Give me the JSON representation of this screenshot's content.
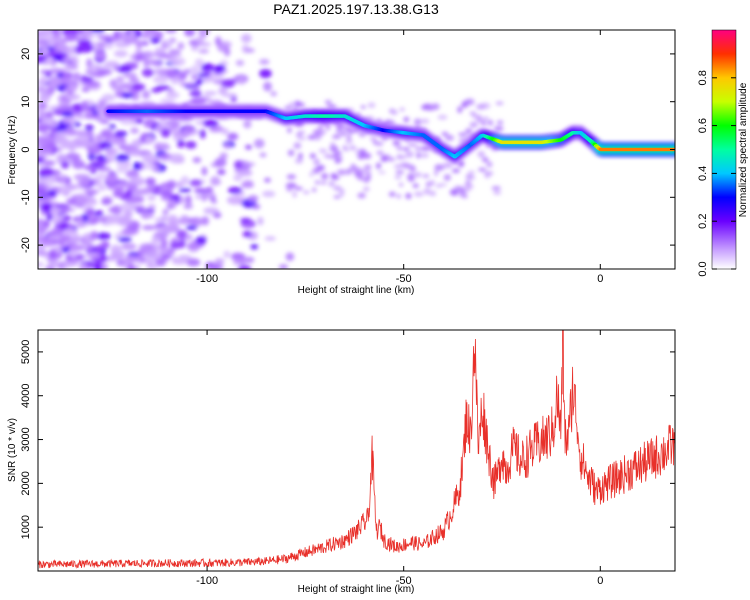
{
  "title": "PAZ1.2025.197.13.38.G13",
  "colors": {
    "snr_line": "#e8302a",
    "axis": "#000000",
    "spec_low": "#d9b8ff",
    "spec_mid": "#8c00ff"
  },
  "chart_data": [
    {
      "type": "heatmap",
      "xlabel": "Height of straight line (km)",
      "ylabel": "Frequency (Hz)",
      "xlim": [
        -143,
        19
      ],
      "ylim": [
        -25,
        25
      ],
      "xticks": [
        -100,
        -50,
        0
      ],
      "yticks": [
        -20,
        -10,
        0,
        10,
        20
      ],
      "colorbar": {
        "label": "Normalized spectral amplitude",
        "range": [
          0,
          1
        ],
        "ticks": [
          "0.0",
          "0.2",
          "0.4",
          "0.6",
          "0.8"
        ],
        "colormap": "rainbow (white→violet→blue→cyan→green→yellow→red→magenta)"
      },
      "ridge": {
        "x": [
          -125,
          -115,
          -105,
          -95,
          -85,
          -80,
          -75,
          -70,
          -65,
          -60,
          -55,
          -50,
          -45,
          -40,
          -37,
          -33,
          -30,
          -25,
          -20,
          -15,
          -10,
          -7,
          -5,
          -2,
          0,
          5,
          10,
          19
        ],
        "y": [
          8,
          8,
          8,
          8,
          8,
          6.5,
          7,
          7,
          7,
          5,
          4,
          3.5,
          3,
          0,
          -1.5,
          1,
          3,
          1.5,
          1.5,
          1.5,
          2,
          3.5,
          3.5,
          1.5,
          0,
          0,
          0,
          0
        ],
        "amplitude": [
          0.3,
          0.35,
          0.3,
          0.3,
          0.3,
          0.4,
          0.45,
          0.5,
          0.45,
          0.4,
          0.3,
          0.4,
          0.35,
          0.35,
          0.4,
          0.35,
          0.4,
          0.75,
          0.75,
          0.75,
          0.6,
          0.5,
          0.4,
          0.5,
          0.85,
          0.85,
          0.85,
          0.85
        ]
      }
    },
    {
      "type": "line",
      "xlabel": "Height of straight line (km)",
      "ylabel": "SNR (10 * v/v)",
      "xlim": [
        -143,
        19
      ],
      "ylim": [
        0,
        5500
      ],
      "xticks": [
        -100,
        -50,
        0
      ],
      "yticks": [
        1000,
        2000,
        3000,
        4000,
        5000
      ],
      "series": [
        {
          "x": [
            -143,
            -130,
            -120,
            -110,
            -100,
            -90,
            -85,
            -80,
            -75,
            -70,
            -65,
            -62,
            -59,
            -58,
            -57,
            -56,
            -55,
            -52,
            -48,
            -45,
            -42,
            -40,
            -38,
            -36,
            -35,
            -34,
            -33,
            -32,
            -31,
            -30,
            -29,
            -28,
            -27,
            -26,
            -25,
            -24,
            -22,
            -20,
            -18,
            -16,
            -14,
            -12,
            -11,
            -10,
            -9.5,
            -9,
            -8,
            -7,
            -6,
            -5,
            -4,
            -3,
            -2,
            -1,
            0,
            2,
            4,
            6,
            8,
            10,
            12,
            14,
            16,
            18,
            19
          ],
          "y": [
            150,
            160,
            170,
            180,
            180,
            200,
            220,
            280,
            420,
            550,
            700,
            900,
            1200,
            2650,
            900,
            1000,
            700,
            550,
            650,
            600,
            800,
            900,
            1300,
            1800,
            2400,
            3600,
            3000,
            5300,
            2800,
            3800,
            3100,
            2500,
            2000,
            2200,
            2700,
            2300,
            2800,
            2500,
            2700,
            2900,
            3000,
            3200,
            4000,
            3200,
            5400,
            3000,
            3100,
            4200,
            3500,
            2600,
            2400,
            2100,
            2000,
            1800,
            1900,
            2000,
            2100,
            2200,
            2300,
            2400,
            2500,
            2600,
            2700,
            2850,
            2900
          ]
        }
      ]
    }
  ]
}
